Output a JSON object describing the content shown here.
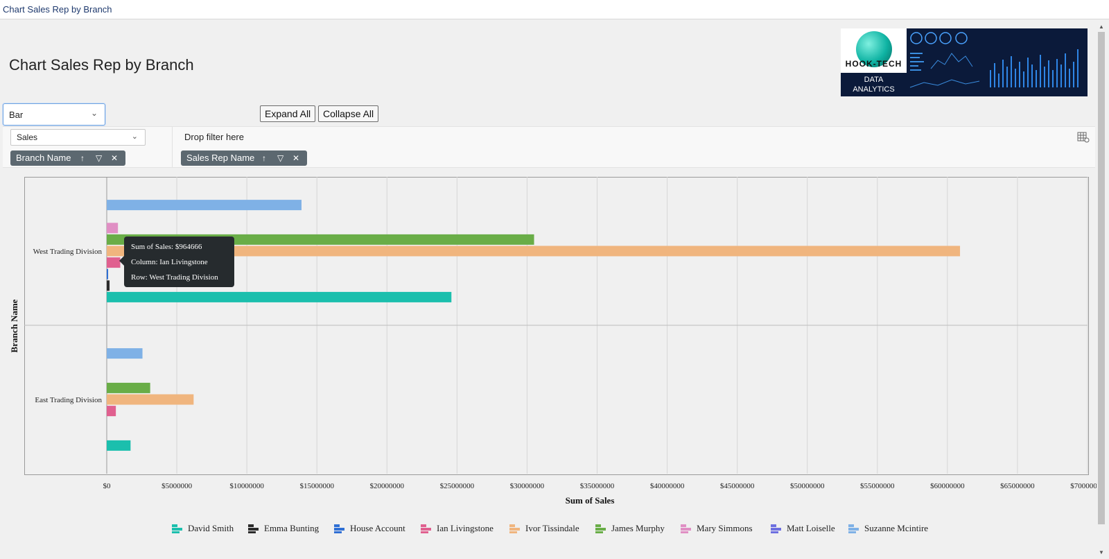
{
  "window": {
    "title": "Chart Sales Rep by Branch"
  },
  "page": {
    "title": "Chart Sales Rep by Branch"
  },
  "logo": {
    "brand": "HOOK-TECH",
    "line1": "DATA",
    "line2": "ANALYTICS"
  },
  "chart_type_select": {
    "value": "Bar"
  },
  "buttons": {
    "expand_all": "Expand All",
    "collapse_all": "Collapse All"
  },
  "value_select": {
    "value": "Sales"
  },
  "filter_area": {
    "placeholder": "Drop filter here"
  },
  "pills": {
    "rows": {
      "label": "Branch Name"
    },
    "columns": {
      "label": "Sales Rep Name"
    }
  },
  "tooltip": {
    "line1": "Sum of Sales: $964666",
    "line2": "Column: Ian Livingstone",
    "line3": "Row: West Trading Division"
  },
  "chart_data": {
    "type": "bar",
    "orientation": "horizontal",
    "xlabel": "Sum of Sales",
    "ylabel": "Branch Name",
    "xlim": [
      0,
      70000000
    ],
    "x_ticks": [
      "$0",
      "$5000000",
      "$10000000",
      "$15000000",
      "$20000000",
      "$25000000",
      "$30000000",
      "$35000000",
      "$40000000",
      "$45000000",
      "$50000000",
      "$55000000",
      "$60000000",
      "$65000000",
      "$70000000"
    ],
    "categories": [
      "West Trading Division",
      "East Trading Division"
    ],
    "series": [
      {
        "name": "David Smith",
        "color": "#1bbfad",
        "values": [
          24600000,
          1700000
        ]
      },
      {
        "name": "Emma Bunting",
        "color": "#2b2b2b",
        "values": [
          200000,
          0
        ]
      },
      {
        "name": "House Account",
        "color": "#2f6fd4",
        "values": [
          60000,
          0
        ]
      },
      {
        "name": "Ian Livingstone",
        "color": "#e0608f",
        "values": [
          964666,
          650000
        ]
      },
      {
        "name": "Ivor Tissindale",
        "color": "#f0b57e",
        "values": [
          60900000,
          6200000
        ]
      },
      {
        "name": "James Murphy",
        "color": "#69ad47",
        "values": [
          30500000,
          3100000
        ]
      },
      {
        "name": "Mary Simmons",
        "color": "#e08fc4",
        "values": [
          800000,
          0
        ]
      },
      {
        "name": "Matt Loiselle",
        "color": "#6d6fe0",
        "values": [
          0,
          0
        ]
      },
      {
        "name": "Suzanne Mcintire",
        "color": "#7fb1e6",
        "values": [
          13900000,
          2550000
        ]
      }
    ],
    "grid": true,
    "legend": "bottom"
  }
}
